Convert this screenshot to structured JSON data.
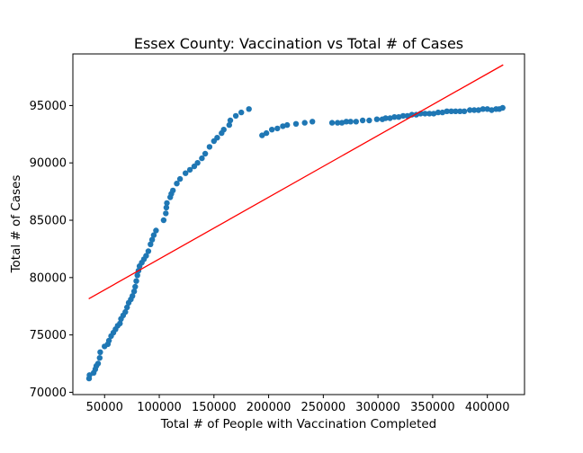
{
  "chart_data": {
    "type": "scatter",
    "title": "Essex County: Vaccination vs Total # of Cases",
    "xlabel": "Total # of People with Vaccination Completed",
    "ylabel": "Total # of Cases",
    "xlim": [
      21000,
      434000
    ],
    "ylim": [
      69800,
      99500
    ],
    "xticks": [
      50000,
      100000,
      150000,
      200000,
      250000,
      300000,
      350000,
      400000
    ],
    "yticks": [
      70000,
      75000,
      80000,
      85000,
      90000,
      95000
    ],
    "grid": false,
    "legend": "none",
    "point_color": "#1f77b4",
    "line_color": "#ff0000",
    "fit_line": {
      "x": [
        35500,
        414500
      ],
      "y": [
        78150,
        98550
      ]
    },
    "points": [
      [
        35800,
        71200
      ],
      [
        36200,
        71500
      ],
      [
        40000,
        71700
      ],
      [
        41500,
        72000
      ],
      [
        42500,
        72300
      ],
      [
        44000,
        72500
      ],
      [
        45500,
        73000
      ],
      [
        46000,
        73500
      ],
      [
        50000,
        74000
      ],
      [
        53000,
        74200
      ],
      [
        54000,
        74500
      ],
      [
        56000,
        74900
      ],
      [
        58000,
        75200
      ],
      [
        60000,
        75500
      ],
      [
        62000,
        75800
      ],
      [
        64000,
        76000
      ],
      [
        65000,
        76400
      ],
      [
        67000,
        76700
      ],
      [
        69000,
        77000
      ],
      [
        70500,
        77400
      ],
      [
        72000,
        77800
      ],
      [
        74000,
        78100
      ],
      [
        75500,
        78400
      ],
      [
        77000,
        78800
      ],
      [
        78000,
        79200
      ],
      [
        79000,
        79700
      ],
      [
        80000,
        80200
      ],
      [
        81000,
        80600
      ],
      [
        82000,
        81000
      ],
      [
        84000,
        81300
      ],
      [
        86000,
        81600
      ],
      [
        88000,
        81900
      ],
      [
        90000,
        82300
      ],
      [
        92000,
        82900
      ],
      [
        93500,
        83300
      ],
      [
        95000,
        83700
      ],
      [
        97000,
        84100
      ],
      [
        104000,
        85000
      ],
      [
        106000,
        85600
      ],
      [
        106500,
        86100
      ],
      [
        107000,
        86500
      ],
      [
        110000,
        87000
      ],
      [
        111000,
        87300
      ],
      [
        112500,
        87600
      ],
      [
        116000,
        88200
      ],
      [
        119000,
        88600
      ],
      [
        124000,
        89100
      ],
      [
        128000,
        89400
      ],
      [
        132000,
        89700
      ],
      [
        135000,
        90000
      ],
      [
        139000,
        90400
      ],
      [
        142000,
        90800
      ],
      [
        146000,
        91400
      ],
      [
        150000,
        91900
      ],
      [
        153000,
        92200
      ],
      [
        157000,
        92600
      ],
      [
        159000,
        92900
      ],
      [
        164000,
        93300
      ],
      [
        165000,
        93700
      ],
      [
        170000,
        94100
      ],
      [
        175000,
        94400
      ],
      [
        182000,
        94700
      ],
      [
        194000,
        92400
      ],
      [
        198000,
        92600
      ],
      [
        203000,
        92900
      ],
      [
        208000,
        93000
      ],
      [
        213000,
        93200
      ],
      [
        217000,
        93300
      ],
      [
        225000,
        93400
      ],
      [
        233000,
        93500
      ],
      [
        240000,
        93600
      ],
      [
        258000,
        93500
      ],
      [
        263000,
        93500
      ],
      [
        267000,
        93500
      ],
      [
        271000,
        93600
      ],
      [
        275000,
        93600
      ],
      [
        280000,
        93600
      ],
      [
        286000,
        93700
      ],
      [
        292000,
        93700
      ],
      [
        299000,
        93800
      ],
      [
        304000,
        93800
      ],
      [
        307000,
        93900
      ],
      [
        311000,
        93900
      ],
      [
        315000,
        94000
      ],
      [
        319000,
        94000
      ],
      [
        323000,
        94100
      ],
      [
        327000,
        94100
      ],
      [
        331000,
        94200
      ],
      [
        335000,
        94200
      ],
      [
        339000,
        94300
      ],
      [
        343000,
        94300
      ],
      [
        347000,
        94300
      ],
      [
        351000,
        94300
      ],
      [
        355000,
        94400
      ],
      [
        359000,
        94400
      ],
      [
        363000,
        94500
      ],
      [
        367000,
        94500
      ],
      [
        371000,
        94500
      ],
      [
        375000,
        94500
      ],
      [
        379000,
        94500
      ],
      [
        384000,
        94600
      ],
      [
        388000,
        94600
      ],
      [
        392000,
        94600
      ],
      [
        396000,
        94700
      ],
      [
        400000,
        94700
      ],
      [
        404000,
        94600
      ],
      [
        408000,
        94700
      ],
      [
        411000,
        94700
      ],
      [
        414000,
        94800
      ]
    ]
  }
}
